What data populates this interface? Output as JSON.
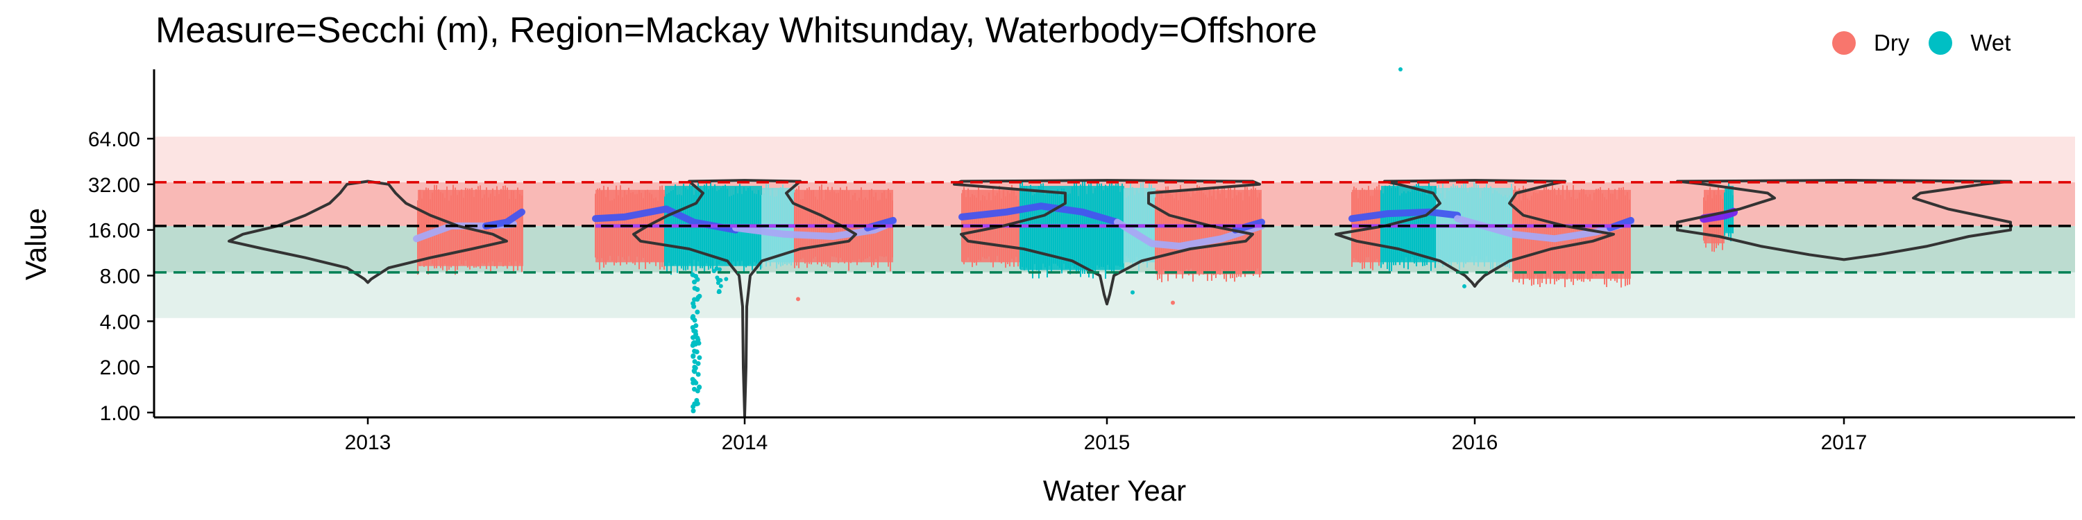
{
  "chart_data": {
    "type": "violin-timeseries",
    "title": "Measure=Secchi (m), Region=Mackay Whitsunday, Waterbody=Offshore",
    "xlabel": "Water Year",
    "ylabel": "Value",
    "y_scale": "log2",
    "ylim": [
      0.85,
      80
    ],
    "y_ticks": [
      1,
      2,
      4,
      8,
      16,
      32,
      64
    ],
    "y_tick_labels": [
      "1.00",
      "2.00",
      "4.00",
      "8.00",
      "16.00",
      "32.00",
      "64.00"
    ],
    "x_categories": [
      "2013",
      "2014",
      "2015",
      "2016",
      "2017"
    ],
    "legend": {
      "placement": "top-right",
      "entries": [
        {
          "name": "Dry",
          "color": "#F8766D"
        },
        {
          "name": "Wet",
          "color": "#00BFC4"
        }
      ]
    },
    "bands": [
      {
        "from": 4.2,
        "to": 8.4,
        "color": "#e3f1ec"
      },
      {
        "from": 8.4,
        "to": 17,
        "color": "#bcdcd0"
      },
      {
        "from": 17,
        "to": 33,
        "color": "#f9b9b6"
      },
      {
        "from": 33,
        "to": 66,
        "color": "#fce4e3"
      }
    ],
    "reference_lines": [
      {
        "value": 33,
        "color": "#e00000"
      },
      {
        "value": 17,
        "color": "#000000"
      },
      {
        "value": 8.4,
        "color": "#008055"
      }
    ],
    "years": [
      {
        "year": "2013",
        "dry_range": [
          8.5,
          32
        ],
        "wet_range": null,
        "median": 16,
        "violin_min": 7.2,
        "violin_max": 34
      },
      {
        "year": "2014",
        "dry_range": [
          9,
          32
        ],
        "wet_range": [
          1,
          34
        ],
        "median": 17,
        "violin_min": 0.95,
        "violin_max": 34
      },
      {
        "year": "2015",
        "dry_range": [
          7.5,
          32
        ],
        "wet_range": [
          7,
          34
        ],
        "median": 17,
        "violin_min": 5.2,
        "violin_max": 34
      },
      {
        "year": "2016",
        "dry_range": [
          7,
          32
        ],
        "wet_range": [
          8,
          34
        ],
        "median": 17,
        "violin_min": 6.8,
        "violin_max": 34
      },
      {
        "year": "2017",
        "dry_range": [
          12,
          32
        ],
        "wet_range": [
          14,
          33
        ],
        "median": 19,
        "violin_min": 10,
        "violin_max": 34
      }
    ],
    "colors": {
      "dry": "#F8766D",
      "wet": "#00BFC4",
      "dry_light": "#FAA8A2",
      "wet_light": "#7FDDE0",
      "smooth_line": "#4455EE",
      "smooth_light": "#A8A8F4",
      "violin": "#333333"
    }
  }
}
